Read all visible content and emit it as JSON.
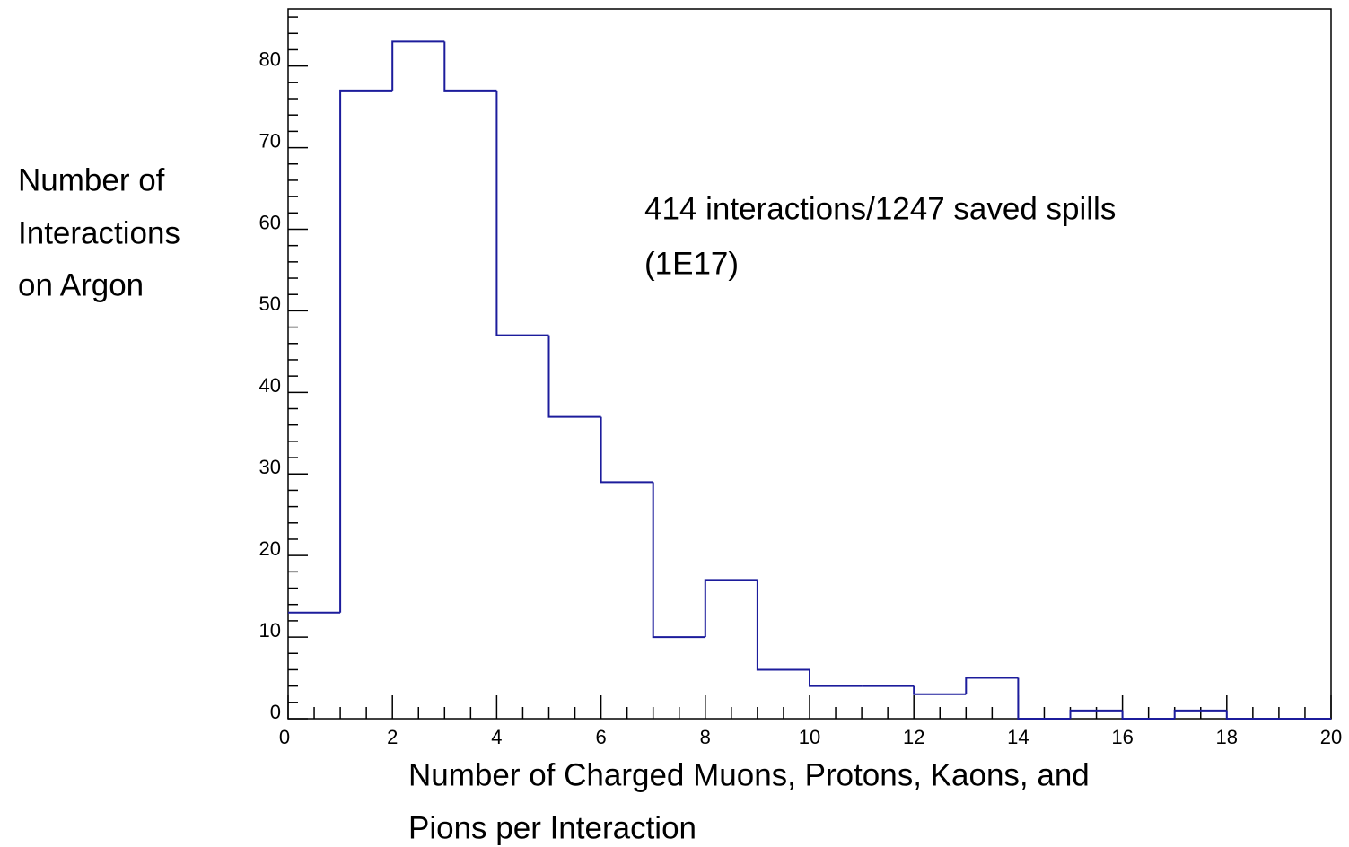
{
  "chart_data": {
    "type": "histogram",
    "ylabel": [
      "Number of",
      "Interactions",
      "on Argon"
    ],
    "xlabel": [
      "Number of Charged Muons, Protons, Kaons, and",
      "Pions per Interaction"
    ],
    "annotation": [
      "414 interactions/1247 saved spills",
      "(1E17)"
    ],
    "bins": [
      0,
      1,
      2,
      3,
      4,
      5,
      6,
      7,
      8,
      9,
      10,
      11,
      12,
      13,
      14,
      15,
      16,
      17,
      18,
      19,
      20
    ],
    "values": [
      13,
      77,
      83,
      77,
      47,
      37,
      29,
      10,
      17,
      6,
      4,
      4,
      3,
      5,
      0,
      1,
      0,
      1,
      0,
      0
    ],
    "color": "#1c1c9c",
    "xlim": [
      0,
      20
    ],
    "xticks": [
      0,
      2,
      4,
      6,
      8,
      10,
      12,
      14,
      16,
      18,
      20
    ],
    "ylim": [
      0,
      87
    ],
    "yticks": [
      0,
      10,
      20,
      30,
      40,
      50,
      60,
      70,
      80
    ]
  }
}
